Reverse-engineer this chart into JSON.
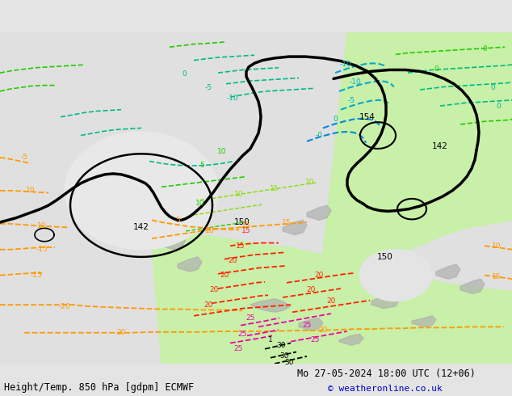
{
  "title_left": "Height/Temp. 850 hPa [gdpm] ECMWF",
  "title_right": "Mo 27-05-2024 18:00 UTC (12+06)",
  "copyright": "© weatheronline.co.uk",
  "fig_width": 6.34,
  "fig_height": 4.9,
  "dpi": 100,
  "bg_color": "#e8e8e8",
  "map_bg_color": "#e0e0e0",
  "green_fill": "#c8f0a8",
  "gray_land": "#b8b8b8",
  "title_fontsize": 8.5,
  "copyright_fontsize": 8,
  "bar_color": "#ffffff",
  "xlim": [
    0,
    634
  ],
  "ylim": [
    0,
    450
  ],
  "bottom_bar_h": 40
}
